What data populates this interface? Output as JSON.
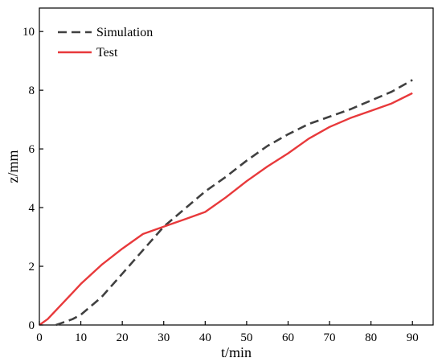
{
  "chart_data": {
    "type": "line",
    "title": "",
    "xlabel": "t/min",
    "ylabel": "z/mm",
    "xlim": [
      0,
      95
    ],
    "ylim": [
      0,
      10.8
    ],
    "xticks": [
      0,
      10,
      20,
      30,
      40,
      50,
      60,
      70,
      80,
      90
    ],
    "yticks": [
      0,
      2,
      4,
      6,
      8,
      10
    ],
    "grid": false,
    "legend_position": "top-left",
    "series": [
      {
        "name": "Simulation",
        "color": "#404040",
        "style": "dashed",
        "x": [
          4,
          5,
          8,
          10,
          15,
          20,
          25,
          30,
          35,
          40,
          45,
          50,
          55,
          60,
          65,
          70,
          75,
          80,
          85,
          90
        ],
        "y": [
          0.0,
          0.05,
          0.2,
          0.35,
          0.95,
          1.75,
          2.55,
          3.35,
          3.95,
          4.55,
          5.05,
          5.6,
          6.1,
          6.5,
          6.85,
          7.1,
          7.35,
          7.65,
          7.95,
          8.35
        ]
      },
      {
        "name": "Test",
        "color": "#e8393b",
        "style": "solid",
        "x": [
          0,
          2,
          5,
          8,
          10,
          15,
          20,
          25,
          30,
          35,
          40,
          45,
          50,
          55,
          60,
          65,
          70,
          75,
          80,
          85,
          90
        ],
        "y": [
          0.0,
          0.2,
          0.65,
          1.1,
          1.4,
          2.05,
          2.6,
          3.1,
          3.35,
          3.6,
          3.85,
          4.35,
          4.9,
          5.4,
          5.85,
          6.35,
          6.75,
          7.05,
          7.3,
          7.55,
          7.9
        ]
      }
    ]
  }
}
